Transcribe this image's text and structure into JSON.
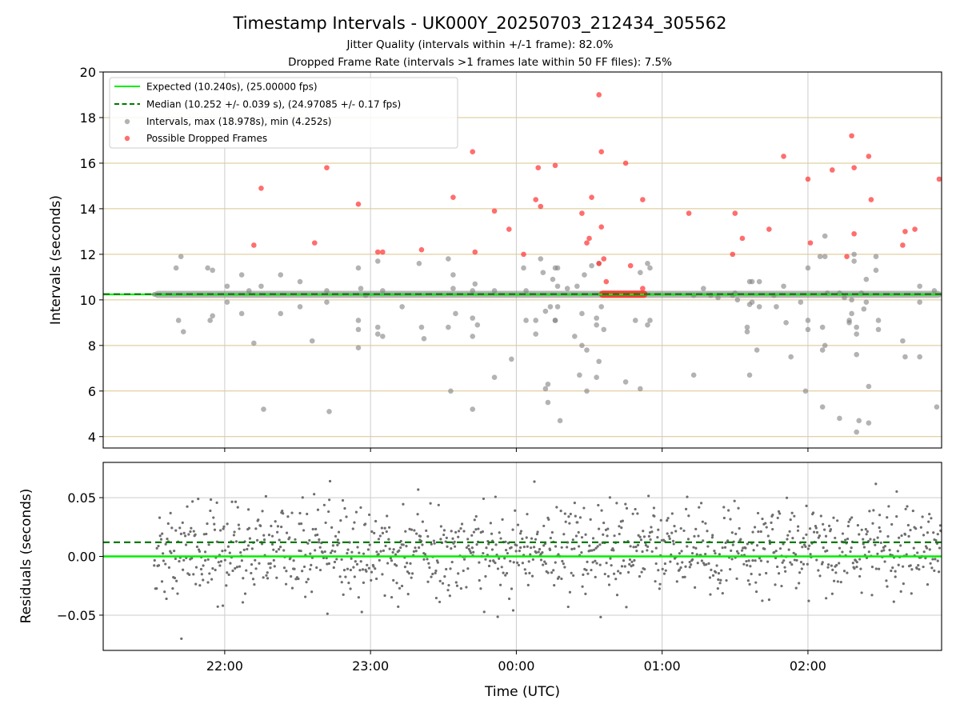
{
  "figure": {
    "title": "Timestamp Intervals - UK000Y_20250703_212434_305562",
    "subtitle_jitter": "Jitter Quality (intervals within +/-1 frame): 82.0%",
    "subtitle_dropped": "Dropped Frame Rate (intervals >1 frames late within 50 FF files): 7.5%"
  },
  "colors": {
    "expected": "#00ee00",
    "median": "#007a00",
    "intervals": "#808080",
    "dropped": "#ff3030",
    "residual_points": "#6e6e6e",
    "hgrid_top": "#d9c48a",
    "vgrid": "#cccccc"
  },
  "chart_data": [
    {
      "type": "scatter",
      "ylabel": "Intervals (seconds)",
      "ylim": [
        3.5,
        20
      ],
      "yticks": [
        4,
        6,
        8,
        10,
        12,
        14,
        16,
        18,
        20
      ],
      "xlim": [
        "21:10",
        "02:55"
      ],
      "grid": true,
      "legend_position": "top-left",
      "legend": [
        {
          "label": "Expected (10.240s), (25.00000 fps)",
          "style": "solid-line"
        },
        {
          "label": "Median (10.252 +/- 0.039 s), (24.97085 +/- 0.17 fps)",
          "style": "dashed-line"
        },
        {
          "label": "Intervals, max (18.978s), min (4.252s)",
          "style": "gray-dot"
        },
        {
          "label": "Possible Dropped Frames",
          "style": "red-dot"
        }
      ],
      "reference_lines": {
        "expected": 10.24,
        "median": 10.252,
        "x_start": "21:31"
      },
      "dense_band": {
        "x_start": "21:31",
        "x_end": "02:55",
        "y": 10.24
      },
      "dropped_band": {
        "x_start": "00:34",
        "x_end": "00:54",
        "y": 10.25
      },
      "series": [
        {
          "name": "Intervals, max (18.978s), min (4.252s)",
          "points": [
            [
              "21:40",
              11.4
            ],
            [
              "21:41",
              9.1
            ],
            [
              "21:42",
              11.9
            ],
            [
              "21:43",
              8.6
            ],
            [
              "21:53",
              11.4
            ],
            [
              "21:54",
              9.1
            ],
            [
              "21:55",
              11.3
            ],
            [
              "21:55",
              9.3
            ],
            [
              "22:01",
              10.6
            ],
            [
              "22:01",
              9.9
            ],
            [
              "22:07",
              11.1
            ],
            [
              "22:07",
              9.4
            ],
            [
              "22:10",
              10.4
            ],
            [
              "22:12",
              8.1
            ],
            [
              "22:15",
              10.6
            ],
            [
              "22:16",
              5.2
            ],
            [
              "22:23",
              11.1
            ],
            [
              "22:23",
              9.4
            ],
            [
              "22:31",
              10.8
            ],
            [
              "22:31",
              9.7
            ],
            [
              "22:36",
              8.2
            ],
            [
              "22:42",
              10.4
            ],
            [
              "22:42",
              9.9
            ],
            [
              "22:43",
              5.1
            ],
            [
              "22:55",
              8.7
            ],
            [
              "22:55",
              11.4
            ],
            [
              "22:55",
              9.1
            ],
            [
              "22:55",
              7.9
            ],
            [
              "22:56",
              10.5
            ],
            [
              "22:58",
              10.2
            ],
            [
              "23:03",
              11.7
            ],
            [
              "23:03",
              8.8
            ],
            [
              "23:03",
              8.5
            ],
            [
              "23:05",
              8.4
            ],
            [
              "23:05",
              10.4
            ],
            [
              "23:13",
              9.7
            ],
            [
              "23:20",
              11.6
            ],
            [
              "23:21",
              8.8
            ],
            [
              "23:22",
              8.3
            ],
            [
              "23:32",
              11.8
            ],
            [
              "23:32",
              8.8
            ],
            [
              "23:33",
              6.0
            ],
            [
              "23:34",
              10.5
            ],
            [
              "23:34",
              11.1
            ],
            [
              "23:35",
              9.4
            ],
            [
              "23:42",
              9.2
            ],
            [
              "23:42",
              5.2
            ],
            [
              "23:42",
              8.4
            ],
            [
              "23:42",
              10.4
            ],
            [
              "23:43",
              10.7
            ],
            [
              "23:44",
              8.9
            ],
            [
              "23:51",
              6.6
            ],
            [
              "23:51",
              10.4
            ],
            [
              "23:58",
              7.4
            ],
            [
              "00:03",
              11.4
            ],
            [
              "00:04",
              9.1
            ],
            [
              "00:04",
              10.4
            ],
            [
              "00:08",
              8.5
            ],
            [
              "00:08",
              9.1
            ],
            [
              "00:10",
              11.8
            ],
            [
              "00:11",
              11.2
            ],
            [
              "00:12",
              9.5
            ],
            [
              "00:12",
              6.1
            ],
            [
              "00:13",
              5.5
            ],
            [
              "00:13",
              6.3
            ],
            [
              "00:14",
              9.7
            ],
            [
              "00:15",
              10.9
            ],
            [
              "00:16",
              11.4
            ],
            [
              "00:16",
              9.1
            ],
            [
              "00:16",
              9.1
            ],
            [
              "00:17",
              10.6
            ],
            [
              "00:17",
              9.7
            ],
            [
              "00:17",
              11.4
            ],
            [
              "00:18",
              4.7
            ],
            [
              "00:21",
              10.5
            ],
            [
              "00:24",
              8.4
            ],
            [
              "00:25",
              10.6
            ],
            [
              "00:26",
              6.7
            ],
            [
              "00:27",
              9.4
            ],
            [
              "00:27",
              8.0
            ],
            [
              "00:28",
              11.1
            ],
            [
              "00:29",
              7.8
            ],
            [
              "00:29",
              6.0
            ],
            [
              "00:31",
              11.5
            ],
            [
              "00:33",
              9.2
            ],
            [
              "00:33",
              6.6
            ],
            [
              "00:33",
              8.9
            ],
            [
              "00:34",
              11.6
            ],
            [
              "00:34",
              7.3
            ],
            [
              "00:35",
              9.7
            ],
            [
              "00:36",
              8.7
            ],
            [
              "00:45",
              6.4
            ],
            [
              "00:49",
              9.1
            ],
            [
              "00:51",
              11.2
            ],
            [
              "00:51",
              6.1
            ],
            [
              "00:54",
              11.6
            ],
            [
              "00:54",
              8.9
            ],
            [
              "00:55",
              11.4
            ],
            [
              "00:55",
              9.1
            ],
            [
              "01:13",
              6.7
            ],
            [
              "01:13",
              10.2
            ],
            [
              "01:17",
              10.5
            ],
            [
              "01:20",
              10.2
            ],
            [
              "01:23",
              10.1
            ],
            [
              "01:29",
              10.2
            ],
            [
              "01:30",
              10.3
            ],
            [
              "01:31",
              10.0
            ],
            [
              "01:35",
              8.6
            ],
            [
              "01:35",
              8.8
            ],
            [
              "01:36",
              10.8
            ],
            [
              "01:36",
              9.8
            ],
            [
              "01:36",
              6.7
            ],
            [
              "01:37",
              10.8
            ],
            [
              "01:37",
              9.9
            ],
            [
              "01:39",
              7.8
            ],
            [
              "01:40",
              10.8
            ],
            [
              "01:40",
              9.7
            ],
            [
              "01:46",
              10.2
            ],
            [
              "01:47",
              9.7
            ],
            [
              "01:50",
              10.6
            ],
            [
              "01:51",
              9.0
            ],
            [
              "01:53",
              7.5
            ],
            [
              "01:57",
              9.9
            ],
            [
              "01:59",
              6.0
            ],
            [
              "02:00",
              11.4
            ],
            [
              "02:00",
              9.1
            ],
            [
              "02:00",
              8.7
            ],
            [
              "02:05",
              11.9
            ],
            [
              "02:06",
              8.8
            ],
            [
              "02:06",
              5.3
            ],
            [
              "02:06",
              7.8
            ],
            [
              "02:07",
              8.0
            ],
            [
              "02:07",
              11.9
            ],
            [
              "02:07",
              12.8
            ],
            [
              "02:08",
              10.3
            ],
            [
              "02:13",
              4.8
            ],
            [
              "02:13",
              10.3
            ],
            [
              "02:15",
              10.1
            ],
            [
              "02:17",
              9.1
            ],
            [
              "02:17",
              9.0
            ],
            [
              "02:18",
              10.0
            ],
            [
              "02:18",
              9.4
            ],
            [
              "02:19",
              11.7
            ],
            [
              "02:19",
              12.0
            ],
            [
              "02:20",
              8.8
            ],
            [
              "02:20",
              8.5
            ],
            [
              "02:20",
              7.6
            ],
            [
              "02:20",
              4.2
            ],
            [
              "02:21",
              4.7
            ],
            [
              "02:22",
              10.3
            ],
            [
              "02:23",
              9.6
            ],
            [
              "02:24",
              10.9
            ],
            [
              "02:24",
              9.9
            ],
            [
              "02:25",
              4.6
            ],
            [
              "02:25",
              6.2
            ],
            [
              "02:28",
              11.3
            ],
            [
              "02:28",
              11.9
            ],
            [
              "02:29",
              9.1
            ],
            [
              "02:29",
              8.7
            ],
            [
              "02:39",
              8.2
            ],
            [
              "02:40",
              7.5
            ],
            [
              "02:46",
              10.6
            ],
            [
              "02:46",
              7.5
            ],
            [
              "02:46",
              9.9
            ],
            [
              "02:52",
              10.4
            ],
            [
              "02:53",
              5.3
            ],
            [
              "02:57",
              10.6
            ],
            [
              "02:57",
              10.0
            ]
          ]
        },
        {
          "name": "Possible Dropped Frames",
          "points": [
            [
              "22:12",
              12.4
            ],
            [
              "22:15",
              14.9
            ],
            [
              "22:37",
              12.5
            ],
            [
              "22:42",
              15.8
            ],
            [
              "22:55",
              14.2
            ],
            [
              "23:03",
              12.1
            ],
            [
              "23:05",
              12.1
            ],
            [
              "23:21",
              12.2
            ],
            [
              "23:34",
              14.5
            ],
            [
              "23:42",
              16.5
            ],
            [
              "23:43",
              12.1
            ],
            [
              "23:51",
              13.9
            ],
            [
              "23:57",
              13.1
            ],
            [
              "00:03",
              12.0
            ],
            [
              "00:08",
              14.4
            ],
            [
              "00:09",
              15.8
            ],
            [
              "00:10",
              14.1
            ],
            [
              "00:16",
              15.9
            ],
            [
              "00:27",
              13.8
            ],
            [
              "00:29",
              12.5
            ],
            [
              "00:30",
              12.7
            ],
            [
              "00:31",
              14.5
            ],
            [
              "00:34",
              19.0
            ],
            [
              "00:34",
              11.6
            ],
            [
              "00:35",
              16.5
            ],
            [
              "00:35",
              13.2
            ],
            [
              "00:36",
              11.8
            ],
            [
              "00:37",
              10.8
            ],
            [
              "00:45",
              16.0
            ],
            [
              "00:47",
              11.5
            ],
            [
              "00:52",
              10.5
            ],
            [
              "00:52",
              14.4
            ],
            [
              "01:11",
              13.8
            ],
            [
              "01:29",
              12.0
            ],
            [
              "01:30",
              13.8
            ],
            [
              "01:33",
              12.7
            ],
            [
              "01:44",
              13.1
            ],
            [
              "01:50",
              16.3
            ],
            [
              "02:00",
              15.3
            ],
            [
              "02:01",
              12.5
            ],
            [
              "02:10",
              15.7
            ],
            [
              "02:16",
              11.9
            ],
            [
              "02:18",
              17.2
            ],
            [
              "02:19",
              12.9
            ],
            [
              "02:19",
              15.8
            ],
            [
              "02:25",
              16.3
            ],
            [
              "02:26",
              14.4
            ],
            [
              "02:39",
              12.4
            ],
            [
              "02:40",
              13.0
            ],
            [
              "02:44",
              13.1
            ],
            [
              "02:54",
              15.3
            ]
          ]
        }
      ]
    },
    {
      "type": "scatter",
      "ylabel": "Residuals (seconds)",
      "xlabel": "Time (UTC)",
      "ylim": [
        -0.08,
        0.08
      ],
      "yticks": [
        -0.05,
        0.0,
        0.05
      ],
      "ytick_labels": [
        "−0.05",
        "0.00",
        "0.05"
      ],
      "xticks": [
        "22:00",
        "23:00",
        "00:00",
        "01:00",
        "02:00"
      ],
      "xlim": [
        "21:10",
        "02:55"
      ],
      "grid": true,
      "reference_lines": {
        "expected": 0.0,
        "median": 0.012
      },
      "series": [
        {
          "name": "Residuals",
          "x_range": [
            "21:31",
            "02:55"
          ],
          "count": 1150,
          "center": 0.005,
          "spread": 0.028,
          "min": -0.07,
          "max": 0.073
        }
      ]
    }
  ]
}
